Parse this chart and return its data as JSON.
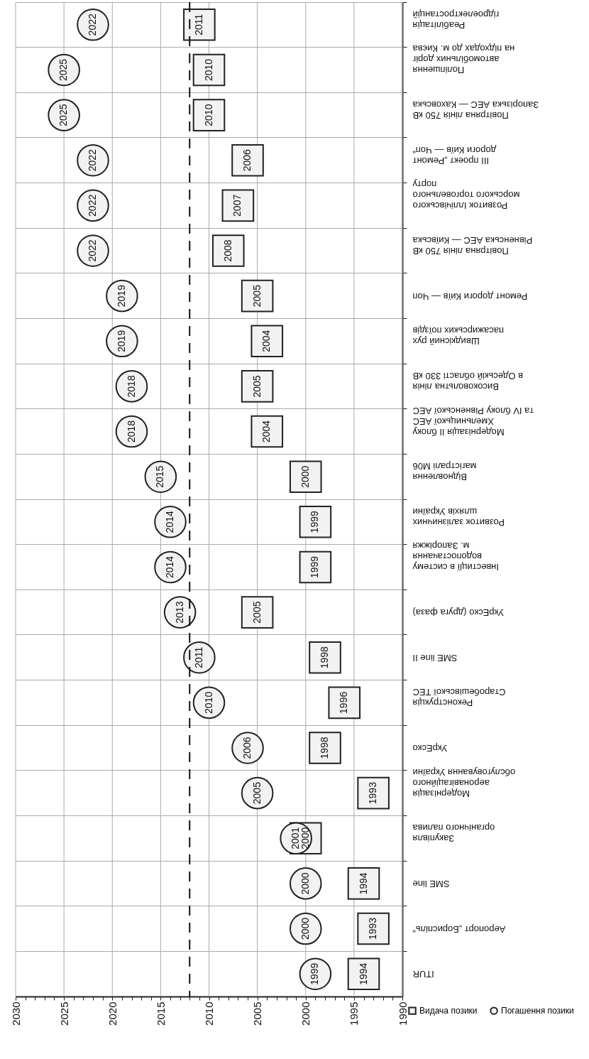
{
  "chart_data": {
    "type": "scatter",
    "orientation": "horizontal",
    "categories": [
      "Реабілітація\nгідроелектростанцій",
      "Поліпшення\nавтомобільних доріг\nна підходах до м. Києва",
      "Повітряна лінія 750 кВ\nЗапорізька АЕС — Каховська",
      "ІІІ проект „Ремонт\nдороги Київ — Чоп“",
      "Розвиток Іллічівського\nморського торговельного\nпорту",
      "Повітряна лінія 750 кВ\nРівненська АЕС — Київська",
      "Ремонт дороги Київ — Чоп",
      "Швидкісний рух\nпасажирських поїздів",
      "Високовольтна лінія\nв Одеській області 330 кВ",
      "Модернізація ІІ блоку\nХмельницької АЕС\nта IV блоку Рівненської АЕС",
      "Відновлення\nмагістралі М06",
      "Розвиток залізничних\nшляхів України",
      "Інвестиції в систему\nводопостачання\nм. Запоріжжя",
      "УкрЕско (друга фаза)",
      "SME line II",
      "Реконструкція\nСтаробешівської ТЕС",
      "УкрЕско",
      "Модернізація\nаеронавігаційного\nобслуговування України",
      "Закупівля\nорганічного палива",
      "SME line",
      "Аеропорт „Бориспіль“",
      "ITUR"
    ],
    "series": [
      {
        "name": "Видача позики",
        "color": "#f2f2f2",
        "marker": "square",
        "values": [
          2011,
          2010,
          2010,
          2006,
          2007,
          2008,
          2005,
          2004,
          2005,
          2004,
          2000,
          1999,
          1999,
          2005,
          1998,
          1996,
          1998,
          1993,
          2000,
          1994,
          1993,
          1994
        ]
      },
      {
        "name": "Погашення позики",
        "color": "#f2f2f2",
        "marker": "circle",
        "values": [
          2022,
          2025,
          2025,
          2022,
          2022,
          2022,
          2019,
          2019,
          2018,
          2018,
          2015,
          2014,
          2014,
          2013,
          2011,
          2010,
          2006,
          2005,
          2001,
          2000,
          2000,
          1999
        ]
      }
    ],
    "xlim": [
      2030,
      1990
    ],
    "xticks": [
      2030,
      {
        "value": 2029,
        "label": null
      },
      {
        "value": 2028,
        "label": null
      },
      {
        "value": 2027,
        "label": null
      },
      {
        "value": 2026,
        "label": null
      },
      2025,
      {
        "value": 2024,
        "label": null
      },
      {
        "value": 2023,
        "label": null
      },
      {
        "value": 2022,
        "label": null
      },
      {
        "value": 2021,
        "label": null
      },
      2020,
      {
        "value": 2019,
        "label": null
      },
      {
        "value": 2018,
        "label": null
      },
      {
        "value": 2017,
        "label": null
      },
      {
        "value": 2016,
        "label": null
      },
      2015,
      {
        "value": 2014,
        "label": null
      },
      {
        "value": 2013,
        "label": null
      },
      {
        "value": 2012,
        "label": null
      },
      {
        "value": 2011,
        "label": null
      },
      2010,
      {
        "value": 2009,
        "label": null
      },
      {
        "value": 2008,
        "label": null
      },
      {
        "value": 2007,
        "label": null
      },
      {
        "value": 2006,
        "label": null
      },
      2005,
      {
        "value": 2004,
        "label": null
      },
      {
        "value": 2003,
        "label": null
      },
      {
        "value": 2002,
        "label": null
      },
      {
        "value": 2001,
        "label": null
      },
      2000,
      {
        "value": 1999,
        "label": null
      },
      {
        "value": 1998,
        "label": null
      },
      {
        "value": 1997,
        "label": null
      },
      {
        "value": 1996,
        "label": null
      },
      1995,
      {
        "value": 1994,
        "label": null
      },
      {
        "value": 1993,
        "label": null
      },
      {
        "value": 1992,
        "label": null
      },
      {
        "value": 1991,
        "label": null
      },
      1990
    ],
    "ref_lines": [
      {
        "axis": "x",
        "value": 2012,
        "color": "#111111",
        "line_style": "dashed"
      }
    ],
    "grid": true,
    "data_labels": true,
    "legend": "bottom right"
  }
}
